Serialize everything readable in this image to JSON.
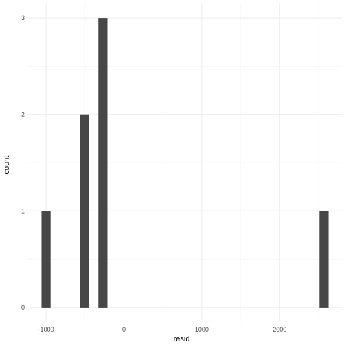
{
  "chart_data": {
    "type": "bar",
    "title": "",
    "xlabel": ".resid",
    "ylabel": "count",
    "bin_width": 117,
    "bins": [
      {
        "x": -1000,
        "count": 1
      },
      {
        "x": -505,
        "count": 2
      },
      {
        "x": -270,
        "count": 3
      },
      {
        "x": 2570,
        "count": 1
      }
    ],
    "xlim": [
      -1230,
      2800
    ],
    "ylim": [
      -0.15,
      3.15
    ],
    "x_ticks": [
      -1000,
      0,
      1000,
      2000
    ],
    "x_tick_labels": [
      "-1000",
      "0",
      "1000",
      "2000"
    ],
    "y_ticks": [
      0,
      1,
      2,
      3
    ],
    "y_tick_labels": [
      "0",
      "1",
      "2",
      "3"
    ],
    "grid": true,
    "colors": {
      "bar": "#474747",
      "grid_major": "#ebebeb",
      "grid_minor": "#f5f5f5",
      "background": "#ffffff"
    }
  }
}
